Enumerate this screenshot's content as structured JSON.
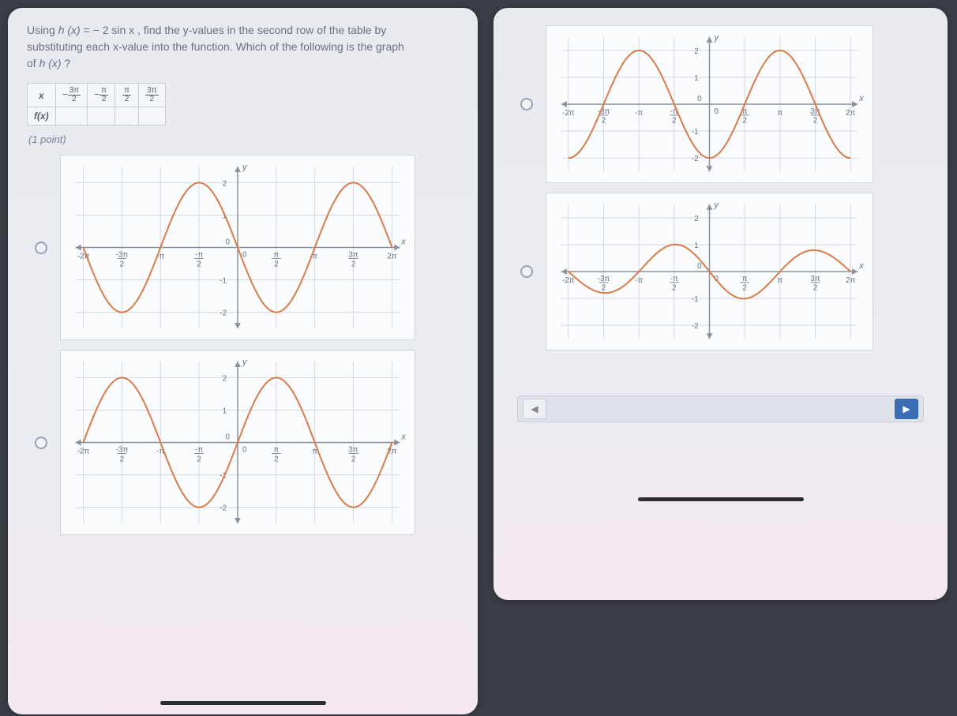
{
  "question": {
    "line1_pre": "Using ",
    "func_lhs": "h (x)",
    "func_eq": " = ",
    "func_rhs": "− 2 sin x",
    "line1_post": ", find the y-values in the second row of the table by",
    "line2": "substituting each x-value into the function. Which of the following is the graph",
    "line3_pre": "of ",
    "line3_func": "h (x)",
    "line3_post": "?"
  },
  "table": {
    "row1_hdr": "x",
    "row2_hdr": "f(x)",
    "cols": [
      "−3π/2",
      "−π/2",
      "π/2",
      "3π/2"
    ]
  },
  "points_label": "(1 point)",
  "graph_axes": {
    "y_label": "y",
    "x_label": "x",
    "x_ticks": [
      "-2π",
      "-3π/2",
      "-π",
      "-π/2",
      "0",
      "π/2",
      "π",
      "3π/2",
      "2π"
    ],
    "y_ticks": [
      "-2",
      "-1",
      "0",
      "1",
      "2"
    ],
    "x_range": [
      -6.6,
      6.6
    ],
    "y_range": [
      -2.5,
      2.5
    ],
    "grid_color": "#d4d8e0",
    "axis_color": "#8a8f9c",
    "curve_color": "#d97a4a",
    "background": "#fbfcfe"
  },
  "options": [
    {
      "id": "A",
      "func": "neg2sin",
      "amp": 2,
      "negate": true,
      "freq": 1
    },
    {
      "id": "B",
      "func": "2sin",
      "amp": 2,
      "negate": false,
      "freq": 1
    },
    {
      "id": "C",
      "func": "neg2cos",
      "amp": 2,
      "negate": true,
      "freq": 1,
      "phase": 1.5708
    },
    {
      "id": "D",
      "func": "negsin2half",
      "amp": 1,
      "negate": true,
      "freq": 1,
      "phase": 0,
      "variant": "mixed"
    }
  ],
  "nav": {
    "prev": "◀",
    "next": "▶"
  }
}
